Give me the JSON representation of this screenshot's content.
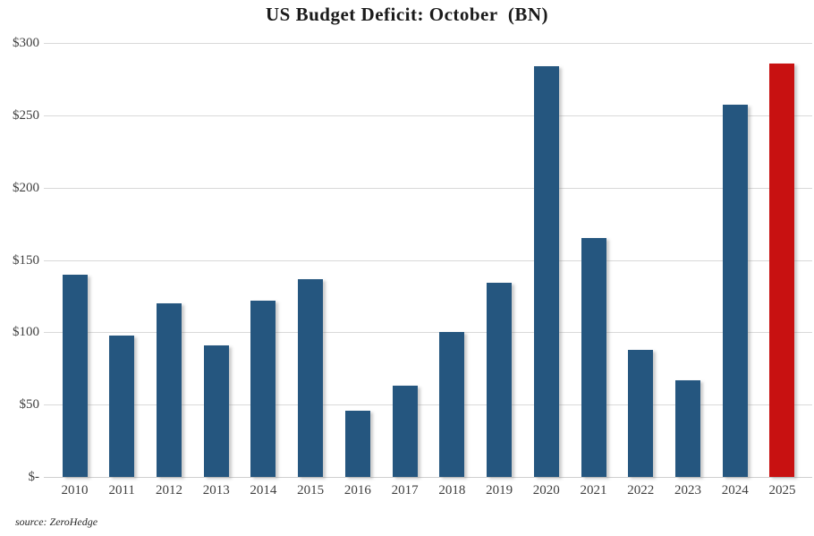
{
  "title": "US Budget Deficit: October  (BN)",
  "source": "source: ZeroHedge",
  "colors": {
    "bar": "#25567F",
    "highlight": "#C81111",
    "gridline": "#D9D9D9",
    "axis_label": "#3F3F3F",
    "title": "#1A1A1A",
    "background": "#FFFFFF"
  },
  "chart_data": {
    "type": "bar",
    "title": "US Budget Deficit: October  (BN)",
    "categories": [
      "2010",
      "2011",
      "2012",
      "2013",
      "2014",
      "2015",
      "2016",
      "2017",
      "2018",
      "2019",
      "2020",
      "2021",
      "2022",
      "2023",
      "2024",
      "2025"
    ],
    "values": [
      140,
      98,
      120,
      91,
      122,
      136.5,
      46,
      63,
      100.5,
      134.5,
      284,
      165,
      88,
      66.5,
      257.5,
      285.5
    ],
    "xlabel": "",
    "ylabel": "",
    "ylim": [
      0,
      300
    ],
    "ytick_interval": 50,
    "ytick_labels": [
      "$-",
      "$50",
      "$100",
      "$150",
      "$200",
      "$250",
      "$300"
    ],
    "grid": true,
    "legend": false,
    "bar_color": "#25567F",
    "highlight_category": "2025",
    "highlight_color": "#C81111",
    "source": "source: ZeroHedge"
  }
}
